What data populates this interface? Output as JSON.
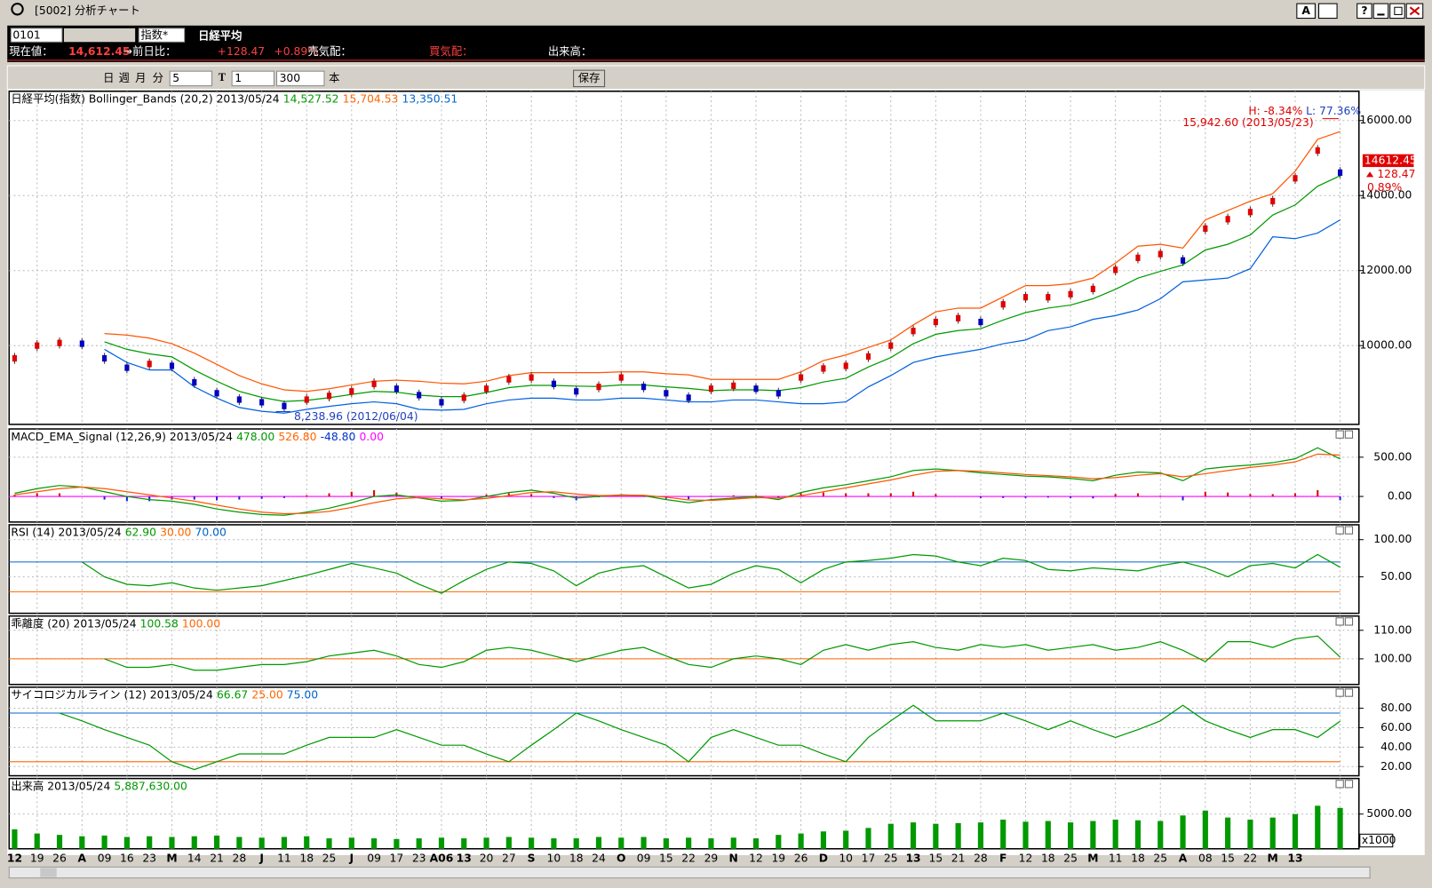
{
  "window": {
    "title": "[5002] 分析チャート",
    "buttons": [
      "A",
      "?"
    ]
  },
  "info_bar": {
    "code": "0101",
    "index_select": "指数*",
    "name": "日経平均",
    "price_label": "現在値：",
    "price": "14,612.45",
    "change_label": "→前日比：",
    "change": "+128.47",
    "change_pct": "+0.89%",
    "ask_label": "売気配：",
    "bid_label": "買気配：",
    "volume_label": "出来高："
  },
  "toolbar": {
    "periods": [
      "日",
      "週",
      "月",
      "分"
    ],
    "minutes": "5",
    "t": "T",
    "step": "1",
    "count": "300",
    "count_unit": "本",
    "save": "保存"
  },
  "chart_data": [
    {
      "type": "line",
      "title": "日経平均(指数) Bollinger_Bands (20,2) 2013/05/24",
      "header_values": [
        {
          "text": "14,527.52",
          "color": "#009900"
        },
        {
          "text": "15,704.53",
          "color": "#ff6600"
        },
        {
          "text": "13,350.51",
          "color": "#0066cc"
        }
      ],
      "ylim": [
        7900,
        16780
      ],
      "yticks": [
        {
          "value": 16000,
          "label": "16000.00"
        },
        {
          "value": 14000,
          "label": "14000.00"
        },
        {
          "value": 12000,
          "label": "12000.00"
        },
        {
          "value": 10000,
          "label": "10000.00"
        }
      ],
      "grid": true,
      "series": [
        {
          "type": "line",
          "color": "#ff5500",
          "values": [
            null,
            null,
            null,
            null,
            10320,
            10280,
            10200,
            10050,
            9800,
            9500,
            9200,
            8980,
            8820,
            8780,
            8850,
            8950,
            9050,
            9080,
            9050,
            9000,
            8980,
            9050,
            9200,
            9280,
            9280,
            9280,
            9280,
            9300,
            9300,
            9250,
            9220,
            9100,
            9100,
            9100,
            9100,
            9300,
            9600,
            9750,
            9950,
            10150,
            10550,
            10900,
            11000,
            11000,
            11300,
            11600,
            11600,
            11650,
            11800,
            12200,
            12650,
            12700,
            12600,
            13350,
            13600,
            13850,
            14050,
            14650,
            15500,
            15704.53
          ]
        },
        {
          "type": "line",
          "color": "#0060e0",
          "values": [
            null,
            null,
            null,
            null,
            9900,
            9550,
            9350,
            9350,
            8900,
            8600,
            8350,
            8250,
            8200,
            8300,
            8380,
            8450,
            8500,
            8450,
            8300,
            8280,
            8300,
            8450,
            8550,
            8600,
            8600,
            8550,
            8550,
            8600,
            8600,
            8550,
            8500,
            8500,
            8550,
            8550,
            8500,
            8450,
            8450,
            8500,
            8900,
            9200,
            9550,
            9700,
            9800,
            9900,
            10050,
            10150,
            10400,
            10500,
            10700,
            10800,
            10950,
            11250,
            11700,
            11750,
            11800,
            12050,
            12900,
            12850,
            13000,
            13350.51
          ]
        },
        {
          "type": "line",
          "color": "#009900",
          "values": [
            null,
            null,
            null,
            null,
            10100,
            9900,
            9780,
            9700,
            9350,
            9050,
            8780,
            8620,
            8510,
            8540,
            8610,
            8700,
            8780,
            8760,
            8680,
            8640,
            8640,
            8750,
            8880,
            8940,
            8940,
            8920,
            8910,
            8950,
            8950,
            8900,
            8860,
            8800,
            8820,
            8820,
            8800,
            8880,
            9030,
            9130,
            9430,
            9680,
            10050,
            10300,
            10400,
            10450,
            10680,
            10880,
            11000,
            11080,
            11250,
            11500,
            11800,
            11980,
            12150,
            12550,
            12700,
            12950,
            13480,
            13750,
            14250,
            14527.52
          ]
        },
        {
          "type": "candle",
          "values": [
            9660,
            10000,
            10070,
            10050,
            9660,
            9410,
            9510,
            9460,
            9020,
            8730,
            8560,
            8490,
            8390,
            8560,
            8660,
            8780,
            8980,
            8850,
            8680,
            8490,
            8610,
            8850,
            9100,
            9150,
            8980,
            8780,
            8900,
            9150,
            8900,
            8730,
            8610,
            8850,
            8930,
            8850,
            8730,
            9150,
            9390,
            9460,
            9710,
            10000,
            10390,
            10630,
            10730,
            10630,
            11100,
            11290,
            11290,
            11370,
            11510,
            12020,
            12340,
            12440,
            12270,
            13120,
            13370,
            13560,
            13850,
            14460,
            15200,
            14612.45
          ]
        }
      ],
      "annotations": [
        "H: -8.34%",
        "L: 77.36%",
        "15,942.60 (2013/05/23)",
        "8,238.96 (2012/06/04)"
      ],
      "price_tag": [
        "14612.45",
        "128.47",
        "0.89%"
      ]
    },
    {
      "type": "line",
      "title": "MACD_EMA_Signal (12,26,9) 2013/05/24",
      "header_values": [
        {
          "text": "478.00",
          "color": "#009900"
        },
        {
          "text": "526.80",
          "color": "#ff6600"
        },
        {
          "text": "-48.80",
          "color": "#0033cc"
        },
        {
          "text": "0.00",
          "color": "#ff00ff"
        }
      ],
      "ylim": [
        -326,
        860
      ],
      "yticks": [
        {
          "value": 500,
          "label": "500.00"
        },
        {
          "value": 0,
          "label": "0.00"
        }
      ],
      "grid": true,
      "ref_lines": [
        {
          "value": 0,
          "color": "#ff00ff"
        }
      ],
      "series": [
        {
          "type": "bar",
          "color": "#e00000",
          "values": [
            20,
            40,
            40,
            0,
            -40,
            -60,
            -60,
            -40,
            -40,
            -50,
            -40,
            -30,
            -20,
            15,
            40,
            60,
            80,
            50,
            -5,
            -30,
            -5,
            25,
            40,
            30,
            -20,
            -50,
            -10,
            5,
            -5,
            -30,
            -35,
            10,
            15,
            15,
            -20,
            40,
            50,
            40,
            40,
            40,
            60,
            30,
            0,
            -20,
            -20,
            -20,
            -15,
            -20,
            -25,
            30,
            40,
            10,
            -50,
            60,
            50,
            30,
            30,
            40,
            80,
            -48.8
          ]
        },
        {
          "type": "line",
          "color": "#009900",
          "values": [
            40,
            100,
            140,
            120,
            60,
            0,
            -40,
            -60,
            -100,
            -160,
            -200,
            -230,
            -240,
            -200,
            -150,
            -80,
            0,
            20,
            -20,
            -60,
            -50,
            0,
            50,
            80,
            40,
            -20,
            0,
            20,
            10,
            -40,
            -80,
            -40,
            -20,
            0,
            -40,
            50,
            110,
            150,
            200,
            250,
            330,
            350,
            330,
            300,
            280,
            260,
            250,
            230,
            200,
            270,
            310,
            300,
            200,
            350,
            380,
            400,
            430,
            480,
            620,
            478
          ]
        },
        {
          "type": "line",
          "color": "#ff5500",
          "values": [
            20,
            60,
            100,
            120,
            100,
            60,
            20,
            -20,
            -60,
            -110,
            -160,
            -200,
            -220,
            -215,
            -190,
            -140,
            -80,
            -30,
            -15,
            -30,
            -45,
            -25,
            10,
            50,
            60,
            30,
            10,
            15,
            15,
            -10,
            -45,
            -50,
            -35,
            -15,
            -20,
            10,
            60,
            110,
            160,
            210,
            270,
            320,
            330,
            320,
            300,
            280,
            265,
            250,
            225,
            240,
            270,
            290,
            250,
            290,
            330,
            370,
            400,
            440,
            540,
            526.8
          ]
        }
      ]
    },
    {
      "type": "line",
      "title": "RSI (14) 2013/05/24",
      "header_values": [
        {
          "text": "62.90",
          "color": "#009900"
        },
        {
          "text": "30.00",
          "color": "#ff6600"
        },
        {
          "text": "70.00",
          "color": "#0066cc"
        }
      ],
      "ylim": [
        1,
        120
      ],
      "yticks": [
        {
          "value": 100,
          "label": "100.00"
        },
        {
          "value": 50,
          "label": "50.00"
        }
      ],
      "grid": true,
      "ref_lines": [
        {
          "value": 70,
          "color": "#0066cc"
        },
        {
          "value": 30,
          "color": "#ff6600"
        }
      ],
      "series": [
        {
          "type": "line",
          "color": "#009900",
          "values": [
            null,
            null,
            null,
            70,
            50,
            40,
            38,
            42,
            35,
            32,
            35,
            38,
            45,
            52,
            60,
            68,
            62,
            55,
            40,
            28,
            45,
            60,
            70,
            68,
            58,
            38,
            55,
            62,
            65,
            50,
            35,
            40,
            55,
            65,
            60,
            42,
            60,
            70,
            72,
            75,
            80,
            78,
            70,
            65,
            75,
            72,
            60,
            58,
            62,
            60,
            58,
            65,
            70,
            62,
            50,
            65,
            68,
            62,
            80,
            62.9
          ]
        }
      ]
    },
    {
      "type": "line",
      "title": "乖離度 (20) 2013/05/24",
      "header_values": [
        {
          "text": "100.58",
          "color": "#009900"
        },
        {
          "text": "100.00",
          "color": "#ff6600"
        }
      ],
      "ylim": [
        91,
        115
      ],
      "yticks": [
        {
          "value": 110,
          "label": "110.00"
        },
        {
          "value": 100,
          "label": "100.00"
        }
      ],
      "grid": true,
      "ref_lines": [
        {
          "value": 100,
          "color": "#ff6600"
        }
      ],
      "series": [
        {
          "type": "line",
          "color": "#009900",
          "values": [
            null,
            null,
            null,
            null,
            100,
            97,
            97,
            98,
            96,
            96,
            97,
            98,
            98,
            99,
            101,
            102,
            103,
            101,
            98,
            97,
            99,
            103,
            104,
            103,
            101,
            99,
            101,
            103,
            104,
            101,
            98,
            97,
            100,
            101,
            100,
            98,
            103,
            105,
            103,
            105,
            106,
            104,
            103,
            105,
            104,
            105,
            103,
            104,
            105,
            103,
            104,
            106,
            103,
            99,
            106,
            106,
            104,
            107,
            108,
            100.58
          ]
        }
      ]
    },
    {
      "type": "line",
      "title": "サイコロジカルライン (12) 2013/05/24",
      "header_values": [
        {
          "text": "66.67",
          "color": "#009900"
        },
        {
          "text": "25.00",
          "color": "#ff6600"
        },
        {
          "text": "75.00",
          "color": "#0066cc"
        }
      ],
      "ylim": [
        10.6,
        101.6
      ],
      "yticks": [
        {
          "value": 80,
          "label": "80.00"
        },
        {
          "value": 60,
          "label": "60.00"
        },
        {
          "value": 40,
          "label": "40.00"
        },
        {
          "value": 20,
          "label": "20.00"
        }
      ],
      "grid": true,
      "ref_lines": [
        {
          "value": 75,
          "color": "#0066cc"
        },
        {
          "value": 25,
          "color": "#ff6600"
        }
      ],
      "series": [
        {
          "type": "line",
          "color": "#009900",
          "values": [
            null,
            null,
            75,
            67,
            58,
            50,
            42,
            25,
            17,
            25,
            33,
            33,
            33,
            42,
            50,
            50,
            50,
            58,
            50,
            42,
            42,
            33,
            25,
            42,
            58,
            75,
            67,
            58,
            50,
            42,
            25,
            50,
            58,
            50,
            42,
            42,
            33,
            25,
            50,
            67,
            83,
            67,
            67,
            67,
            75,
            67,
            58,
            67,
            58,
            50,
            58,
            67,
            83,
            67,
            58,
            50,
            58,
            58,
            50,
            66.67
          ]
        }
      ]
    },
    {
      "type": "bar",
      "title": "出来高 2013/05/24",
      "header_values": [
        {
          "text": "5,887,630.00",
          "color": "#009900"
        }
      ],
      "ylim": [
        0,
        10130
      ],
      "yticks": [
        {
          "value": 5000,
          "label": "5000.00"
        }
      ],
      "grid": true,
      "unit_label": "x1000",
      "series": [
        {
          "type": "bar",
          "color": "#009900",
          "values": [
            2800,
            2200,
            2000,
            1800,
            1900,
            1700,
            1800,
            1700,
            1800,
            1900,
            1700,
            1600,
            1700,
            1800,
            1500,
            1600,
            1500,
            1400,
            1500,
            1600,
            1500,
            1600,
            1700,
            1600,
            1500,
            1500,
            1700,
            1600,
            1700,
            1500,
            1600,
            1500,
            1600,
            1500,
            2000,
            2200,
            2500,
            2600,
            3000,
            3600,
            3800,
            3600,
            3700,
            3800,
            4200,
            3900,
            4000,
            3800,
            4000,
            4200,
            4100,
            4000,
            4800,
            5500,
            4500,
            4200,
            4500,
            5000,
            6200,
            5887.63
          ]
        }
      ],
      "categories": [
        "12",
        "19",
        "26",
        "A",
        "09",
        "16",
        "23",
        "M",
        "14",
        "21",
        "28",
        "J",
        "11",
        "18",
        "25",
        "J",
        "09",
        "17",
        "23",
        "A06",
        "13",
        "20",
        "27",
        "S",
        "10",
        "18",
        "24",
        "O",
        "09",
        "15",
        "22",
        "29",
        "N",
        "12",
        "19",
        "26",
        "D",
        "10",
        "17",
        "25",
        "13",
        "15",
        "21",
        "28",
        "F",
        "12",
        "18",
        "25",
        "M",
        "11",
        "18",
        "25",
        "A",
        "08",
        "15",
        "22",
        "M",
        "13",
        null,
        null
      ]
    }
  ]
}
